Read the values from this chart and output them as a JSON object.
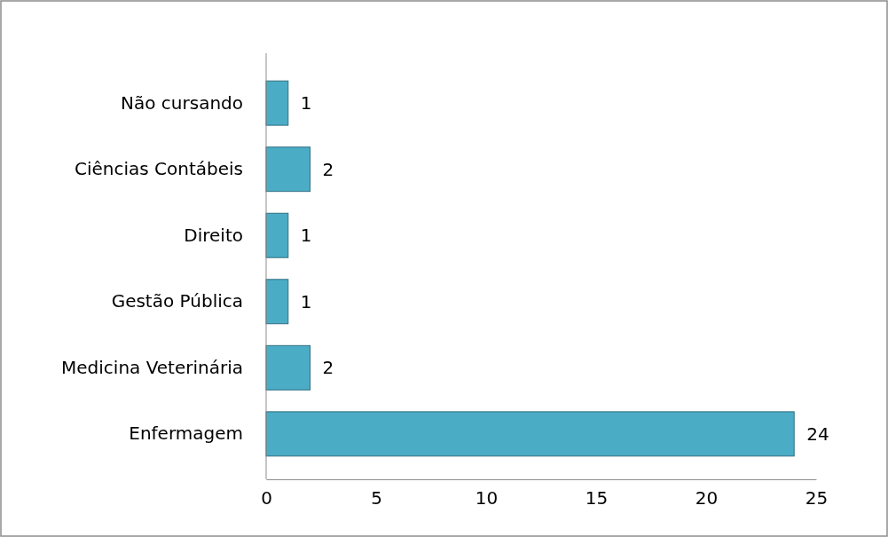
{
  "chart_data": {
    "type": "bar",
    "orientation": "horizontal",
    "categories": [
      "Não cursando",
      "Ciências Contábeis",
      "Direito",
      "Gestão Pública",
      "Medicina Veterinária",
      "Enfermagem"
    ],
    "values": [
      1,
      2,
      1,
      1,
      2,
      24
    ],
    "color": "#4bacc6",
    "xlim": [
      0,
      25
    ],
    "xticks": [
      0,
      5,
      10,
      15,
      20,
      25
    ],
    "data_labels": true
  }
}
